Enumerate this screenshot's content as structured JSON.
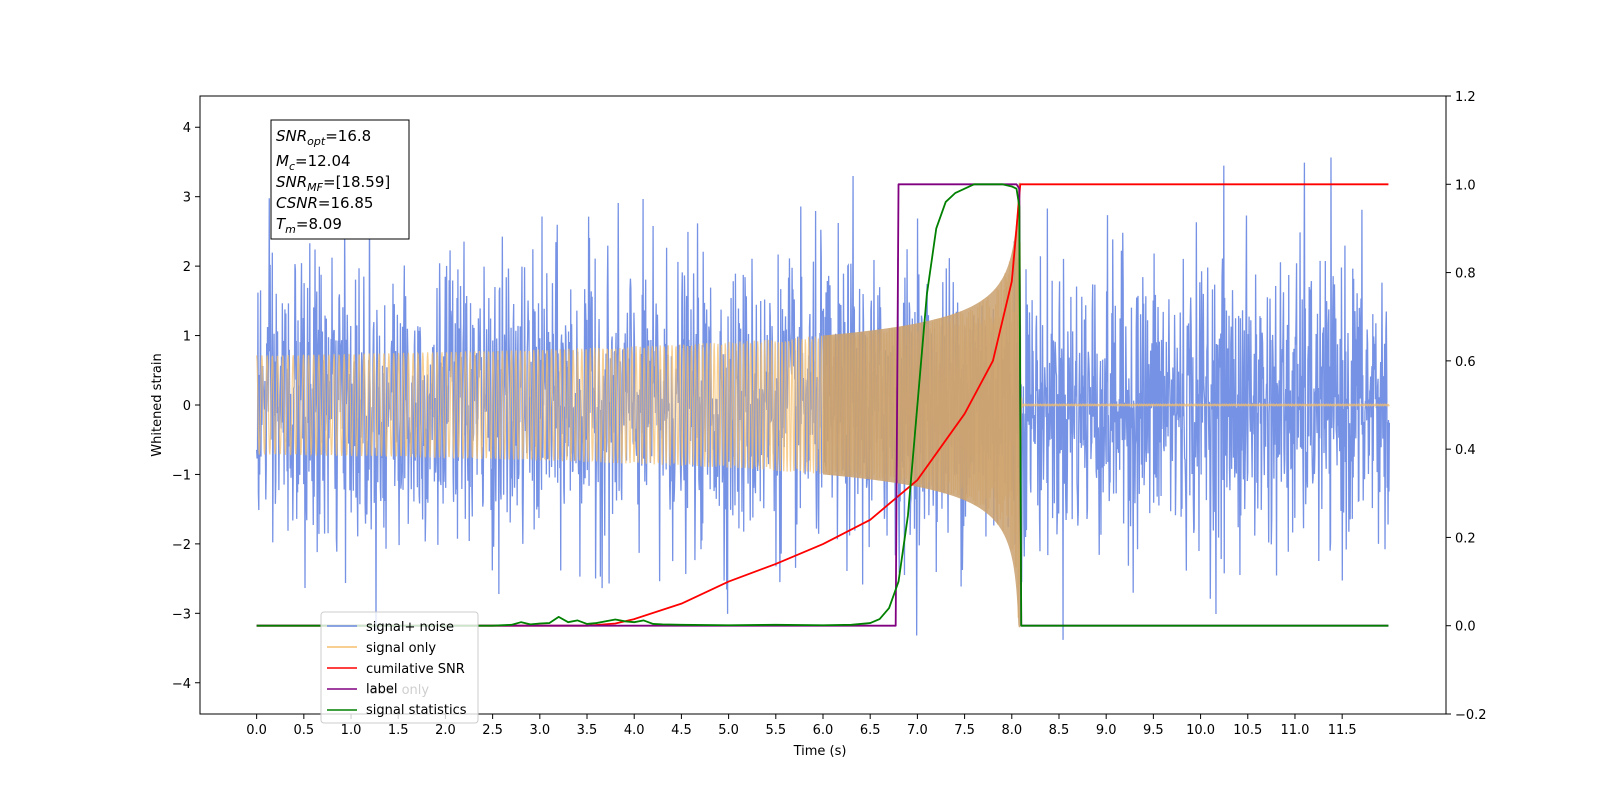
{
  "chart_data": {
    "type": "line",
    "xlabel": "Time (s)",
    "ylabel_left": "Whitened strain",
    "ylabel_right": "",
    "xlim": [
      -0.6,
      12.6
    ],
    "ylim_left": [
      -4.45,
      4.45
    ],
    "ylim_right": [
      -0.2,
      1.2
    ],
    "x_ticks": [
      0.0,
      0.5,
      1.0,
      1.5,
      2.0,
      2.5,
      3.0,
      3.5,
      4.0,
      4.5,
      5.0,
      5.5,
      6.0,
      6.5,
      7.0,
      7.5,
      8.0,
      8.5,
      9.0,
      9.5,
      10.0,
      10.5,
      11.0,
      11.5
    ],
    "x_tick_labels": [
      "0.0",
      "0.5",
      "1.0",
      "1.5",
      "2.0",
      "2.5",
      "3.0",
      "3.5",
      "4.0",
      "4.5",
      "5.0",
      "5.5",
      "6.0",
      "6.5",
      "7.0",
      "7.5",
      "8.0",
      "8.5",
      "9.0",
      "9.5",
      "10.0",
      "10.5",
      "11.0",
      "11.5"
    ],
    "y_left_ticks": [
      4,
      3,
      2,
      1,
      0,
      -1,
      -2,
      -3,
      -4
    ],
    "y_left_tick_labels": [
      "4",
      "3",
      "2",
      "1",
      "0",
      "−1",
      "−2",
      "−3",
      "−4"
    ],
    "y_right_ticks": [
      1.2,
      1.0,
      0.8,
      0.6,
      0.4,
      0.2,
      0.0,
      -0.2
    ],
    "y_right_tick_labels": [
      "1.2",
      "1.0",
      "0.8",
      "0.6",
      "0.4",
      "0.2",
      "0.0",
      "−0.2"
    ],
    "grid": false,
    "legend_position": "lower-left",
    "info_box": {
      "snr_opt": {
        "sym": "SNR",
        "sub": "opt",
        "value": "=16.8"
      },
      "mc": {
        "sym": "M",
        "sub": "c",
        "value": "=12.04"
      },
      "snr_mf": {
        "sym": "SNR",
        "sub": "MF",
        "value": "=[18.59]"
      },
      "csnr": {
        "sym": "CSNR",
        "sub": "",
        "value": "=16.85"
      },
      "tm": {
        "sym": "T",
        "sub": "m",
        "value": "=8.09"
      }
    },
    "series": [
      {
        "name": "signal+ noise",
        "axis": "left",
        "color": "#6f8ce4",
        "kind": "noise",
        "x_range": [
          0.0,
          12.0
        ],
        "amplitude_sd": 1.0,
        "approx_max": 4.1,
        "approx_min": -3.95
      },
      {
        "name": "signal only",
        "axis": "left",
        "color": "#f5bf6b",
        "kind": "chirp",
        "x_range": [
          0.0,
          12.0
        ],
        "merger_time": 8.09,
        "peak_amplitude": 3.2
      },
      {
        "name": "cumilative SNR",
        "axis": "right",
        "color": "#ff0000",
        "x": [
          0.0,
          3.5,
          3.8,
          4.0,
          4.5,
          5.0,
          5.5,
          6.0,
          6.5,
          7.0,
          7.5,
          7.8,
          8.0,
          8.05,
          8.09,
          8.1,
          11.99
        ],
        "y": [
          0.0,
          0.0,
          0.005,
          0.015,
          0.05,
          0.1,
          0.14,
          0.185,
          0.24,
          0.33,
          0.48,
          0.6,
          0.78,
          0.9,
          1.0,
          1.0,
          1.0
        ]
      },
      {
        "name": "label",
        "axis": "right",
        "color": "#800080",
        "x": [
          0.0,
          6.77,
          6.8,
          8.0,
          8.05,
          8.08,
          8.1,
          11.99
        ],
        "y": [
          0.0,
          0.0,
          1.0,
          1.0,
          1.0,
          0.99,
          0.0,
          0.0
        ]
      },
      {
        "name": "label only",
        "axis": "right",
        "color": "#800080",
        "legend_only": true
      },
      {
        "name": "signal statistics",
        "axis": "right",
        "color": "#008000",
        "x": [
          0.0,
          2.5,
          2.7,
          2.8,
          2.9,
          3.0,
          3.1,
          3.2,
          3.3,
          3.4,
          3.5,
          3.6,
          3.7,
          3.8,
          3.9,
          4.0,
          4.1,
          4.2,
          4.3,
          4.5,
          5.0,
          5.5,
          6.0,
          6.3,
          6.5,
          6.6,
          6.7,
          6.8,
          6.9,
          7.0,
          7.1,
          7.2,
          7.3,
          7.4,
          7.5,
          7.6,
          7.7,
          7.8,
          7.9,
          8.0,
          8.05,
          8.08,
          8.1,
          11.99
        ],
        "y": [
          0.0,
          0.0,
          0.002,
          0.008,
          0.003,
          0.005,
          0.006,
          0.02,
          0.008,
          0.012,
          0.004,
          0.006,
          0.01,
          0.014,
          0.01,
          0.008,
          0.012,
          0.004,
          0.003,
          0.002,
          0.001,
          0.002,
          0.001,
          0.002,
          0.006,
          0.015,
          0.04,
          0.1,
          0.25,
          0.5,
          0.75,
          0.9,
          0.96,
          0.98,
          0.99,
          1.0,
          1.0,
          1.0,
          1.0,
          0.995,
          0.99,
          0.95,
          0.0,
          0.0
        ]
      }
    ]
  }
}
